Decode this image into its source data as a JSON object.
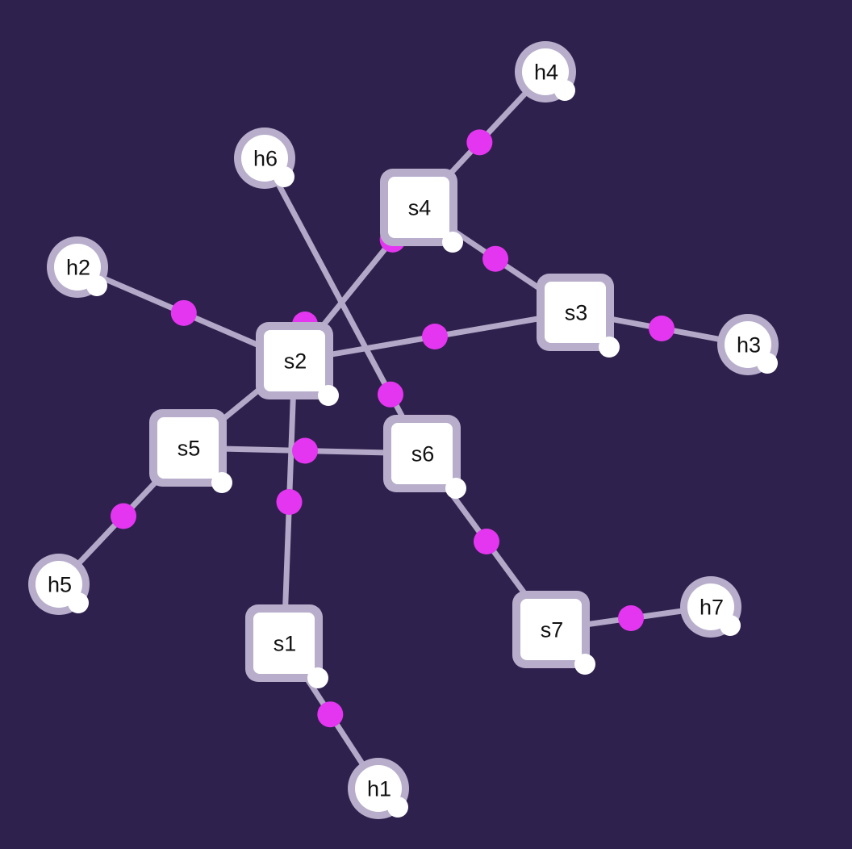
{
  "colors": {
    "background": "#2f214d",
    "link": "#b3a8c7",
    "packet": "#e436f0",
    "node_fill": "#ffffff",
    "node_halo": "#b8aecb",
    "node_text": "#111111"
  },
  "nodes": [
    {
      "id": "s1",
      "label": "s1",
      "kind": "switch"
    },
    {
      "id": "s2",
      "label": "s2",
      "kind": "switch"
    },
    {
      "id": "s3",
      "label": "s3",
      "kind": "switch"
    },
    {
      "id": "s4",
      "label": "s4",
      "kind": "switch"
    },
    {
      "id": "s5",
      "label": "s5",
      "kind": "switch"
    },
    {
      "id": "s6",
      "label": "s6",
      "kind": "switch"
    },
    {
      "id": "s7",
      "label": "s7",
      "kind": "switch"
    },
    {
      "id": "h1",
      "label": "h1",
      "kind": "host"
    },
    {
      "id": "h2",
      "label": "h2",
      "kind": "host"
    },
    {
      "id": "h3",
      "label": "h3",
      "kind": "host"
    },
    {
      "id": "h4",
      "label": "h4",
      "kind": "host"
    },
    {
      "id": "h5",
      "label": "h5",
      "kind": "host"
    },
    {
      "id": "h6",
      "label": "h6",
      "kind": "host"
    },
    {
      "id": "h7",
      "label": "h7",
      "kind": "host"
    }
  ],
  "links": [
    {
      "from": "s1",
      "to": "h1"
    },
    {
      "from": "s1",
      "to": "s2"
    },
    {
      "from": "s2",
      "to": "h2"
    },
    {
      "from": "s2",
      "to": "s3"
    },
    {
      "from": "s2",
      "to": "s4"
    },
    {
      "from": "s2",
      "to": "s5"
    },
    {
      "from": "s3",
      "to": "h3"
    },
    {
      "from": "s3",
      "to": "s4"
    },
    {
      "from": "s4",
      "to": "h4"
    },
    {
      "from": "s5",
      "to": "h5"
    },
    {
      "from": "s5",
      "to": "s6"
    },
    {
      "from": "s6",
      "to": "h6"
    },
    {
      "from": "s6",
      "to": "s7"
    },
    {
      "from": "s7",
      "to": "h7"
    }
  ],
  "packets": [
    {
      "link": "s1-h1"
    },
    {
      "link": "s1-s2"
    },
    {
      "link": "s2-h2"
    },
    {
      "link": "s2-s3"
    },
    {
      "link": "s2-s4"
    },
    {
      "link": "s3-h3"
    },
    {
      "link": "s3-s4"
    },
    {
      "link": "s4-h4"
    },
    {
      "link": "s5-h5"
    },
    {
      "link": "s5-s6"
    },
    {
      "link": "s6-h6"
    },
    {
      "link": "s6-s7"
    },
    {
      "link": "s7-h7"
    }
  ]
}
